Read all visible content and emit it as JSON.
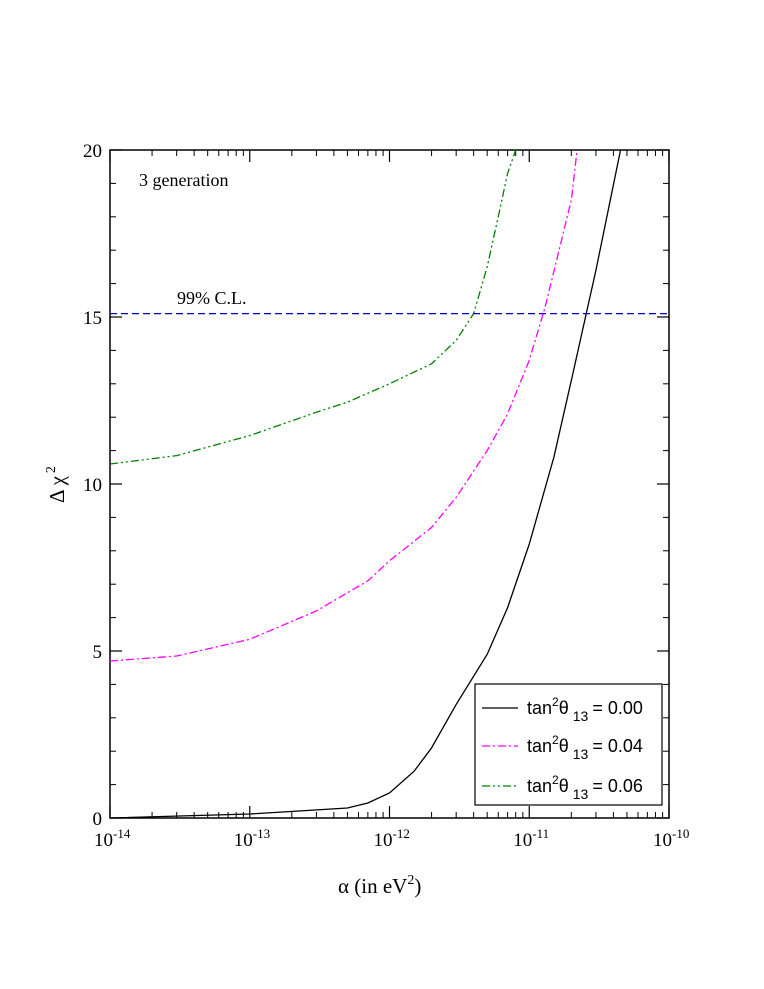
{
  "chart_data": {
    "type": "line",
    "x_scale": "log",
    "y_scale": "linear",
    "xlim": [
      1e-14,
      1e-10
    ],
    "ylim": [
      0,
      20
    ],
    "x_ticks": [
      {
        "value": 1e-14,
        "base": "10",
        "exp": "-14"
      },
      {
        "value": 1e-13,
        "base": "10",
        "exp": "-13"
      },
      {
        "value": 1e-12,
        "base": "10",
        "exp": "-12"
      },
      {
        "value": 1e-11,
        "base": "10",
        "exp": "-11"
      },
      {
        "value": 1e-10,
        "base": "10",
        "exp": "-10"
      }
    ],
    "y_ticks": [
      "0",
      "5",
      "10",
      "15",
      "20"
    ],
    "y_minor_step": 1,
    "xlabel": {
      "main": "α (in eV",
      "sup": "2",
      "close": ")"
    },
    "ylabel": {
      "main": "Δ χ",
      "sup": "2"
    },
    "annotations": {
      "generation": "3 generation",
      "cl": "99% C.L."
    },
    "reference_line": {
      "y": 15.1,
      "color": "#0000cc",
      "dash": "dashed"
    },
    "series": [
      {
        "label": {
          "pre": "tan",
          "sup": "2",
          "theta": "θ",
          "sub": "13",
          "value": "= 0.00"
        },
        "color": "#000000",
        "dash": "solid",
        "points": [
          [
            1e-14,
            0.0
          ],
          [
            1e-13,
            0.12
          ],
          [
            5e-13,
            0.3
          ],
          [
            7e-13,
            0.45
          ],
          [
            1e-12,
            0.75
          ],
          [
            1.5e-12,
            1.4
          ],
          [
            2e-12,
            2.1
          ],
          [
            3e-12,
            3.4
          ],
          [
            5e-12,
            4.9
          ],
          [
            7e-12,
            6.3
          ],
          [
            1e-11,
            8.2
          ],
          [
            1.5e-11,
            10.8
          ],
          [
            2e-11,
            13.1
          ],
          [
            3e-11,
            16.4
          ],
          [
            4.5e-11,
            20.0
          ]
        ]
      },
      {
        "label": {
          "pre": "tan",
          "sup": "2",
          "theta": "θ",
          "sub": "13",
          "value": "=  0.04"
        },
        "color": "#ff00ff",
        "dash": "dashdot",
        "points": [
          [
            1e-14,
            4.7
          ],
          [
            3e-14,
            4.85
          ],
          [
            1e-13,
            5.35
          ],
          [
            3e-13,
            6.2
          ],
          [
            7e-13,
            7.1
          ],
          [
            1e-12,
            7.7
          ],
          [
            2e-12,
            8.7
          ],
          [
            3e-12,
            9.6
          ],
          [
            5e-12,
            11.0
          ],
          [
            7e-12,
            12.1
          ],
          [
            1e-11,
            13.7
          ],
          [
            1.3e-11,
            15.3
          ],
          [
            2e-11,
            18.5
          ],
          [
            2.2e-11,
            20.0
          ]
        ]
      },
      {
        "label": {
          "pre": "tan",
          "sup": "2",
          "theta": "θ",
          "sub": "13",
          "value": "= 0.06"
        },
        "color": "#008000",
        "dash": "dashdotdot",
        "points": [
          [
            1e-14,
            10.6
          ],
          [
            3e-14,
            10.85
          ],
          [
            1e-13,
            11.45
          ],
          [
            3e-13,
            12.15
          ],
          [
            5e-13,
            12.45
          ],
          [
            1e-12,
            13.0
          ],
          [
            2e-12,
            13.6
          ],
          [
            3e-12,
            14.3
          ],
          [
            4e-12,
            15.1
          ],
          [
            5e-12,
            16.5
          ],
          [
            6e-12,
            18.0
          ],
          [
            7e-12,
            19.3
          ],
          [
            8e-12,
            20.0
          ]
        ]
      }
    ],
    "legend_position": "bottom-right"
  }
}
